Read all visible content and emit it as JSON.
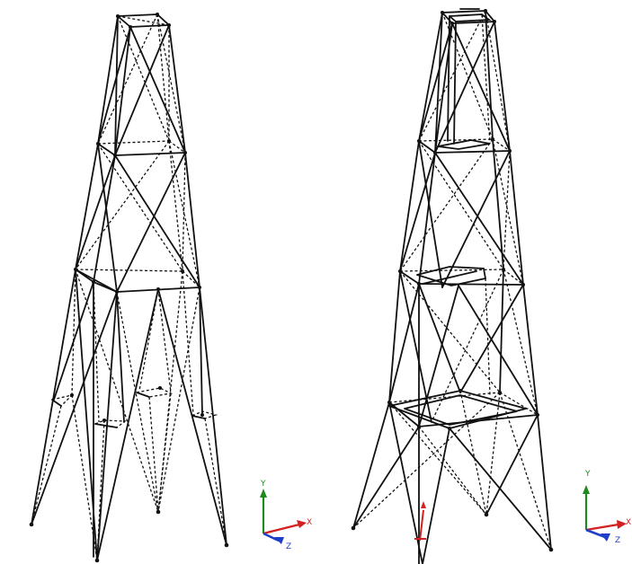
{
  "left_view": {
    "triad": {
      "y_label": "Y",
      "x_label": "X",
      "z_label": "Z"
    }
  },
  "right_view": {
    "triad": {
      "y_label": "Y",
      "x_label": "X",
      "z_label": "Z"
    }
  },
  "colors": {
    "background": "#ffffff",
    "member": "#111111",
    "axis_y": "#1e8a1e",
    "axis_x": "#d42020",
    "axis_z": "#1f3fc8",
    "base_marker": "#d42020"
  },
  "icons": [
    "axis-triad-icon",
    "axis-triad-icon",
    "base-support-marker-icon"
  ]
}
